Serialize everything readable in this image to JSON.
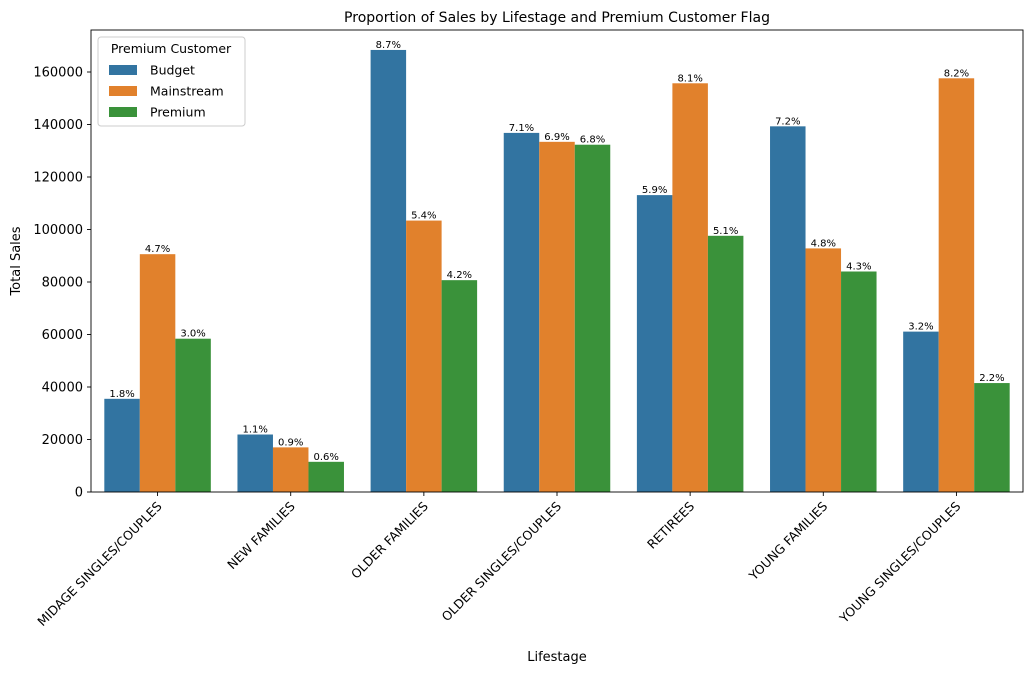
{
  "chart_data": {
    "type": "bar",
    "title": "Proportion of Sales by Lifestage and Premium Customer Flag",
    "xlabel": "Lifestage",
    "ylabel": "Total Sales",
    "ylim": [
      0,
      176000
    ],
    "yticks": [
      0,
      20000,
      40000,
      60000,
      80000,
      100000,
      120000,
      140000,
      160000
    ],
    "grid": false,
    "categories": [
      "MIDAGE SINGLES/COUPLES",
      "NEW FAMILIES",
      "OLDER FAMILIES",
      "OLDER SINGLES/COUPLES",
      "RETIREES",
      "YOUNG FAMILIES",
      "YOUNG SINGLES/COUPLES"
    ],
    "legend": {
      "title": "Premium Customer",
      "location": "top-left"
    },
    "series": [
      {
        "name": "Budget",
        "color": "#3274a1",
        "values": [
          35500,
          21900,
          168400,
          136800,
          113100,
          139300,
          61100
        ],
        "labels": [
          "1.8%",
          "1.1%",
          "8.7%",
          "7.1%",
          "5.9%",
          "7.2%",
          "3.2%"
        ]
      },
      {
        "name": "Mainstream",
        "color": "#e1812c",
        "values": [
          90600,
          17000,
          103400,
          133400,
          155700,
          92800,
          157600
        ],
        "labels": [
          "4.7%",
          "0.9%",
          "5.4%",
          "6.9%",
          "8.1%",
          "4.8%",
          "8.2%"
        ]
      },
      {
        "name": "Premium",
        "color": "#3a923a",
        "values": [
          58400,
          11500,
          80700,
          132300,
          97600,
          84000,
          41500
        ],
        "labels": [
          "3.0%",
          "0.6%",
          "4.2%",
          "6.8%",
          "5.1%",
          "4.3%",
          "2.2%"
        ]
      }
    ]
  }
}
